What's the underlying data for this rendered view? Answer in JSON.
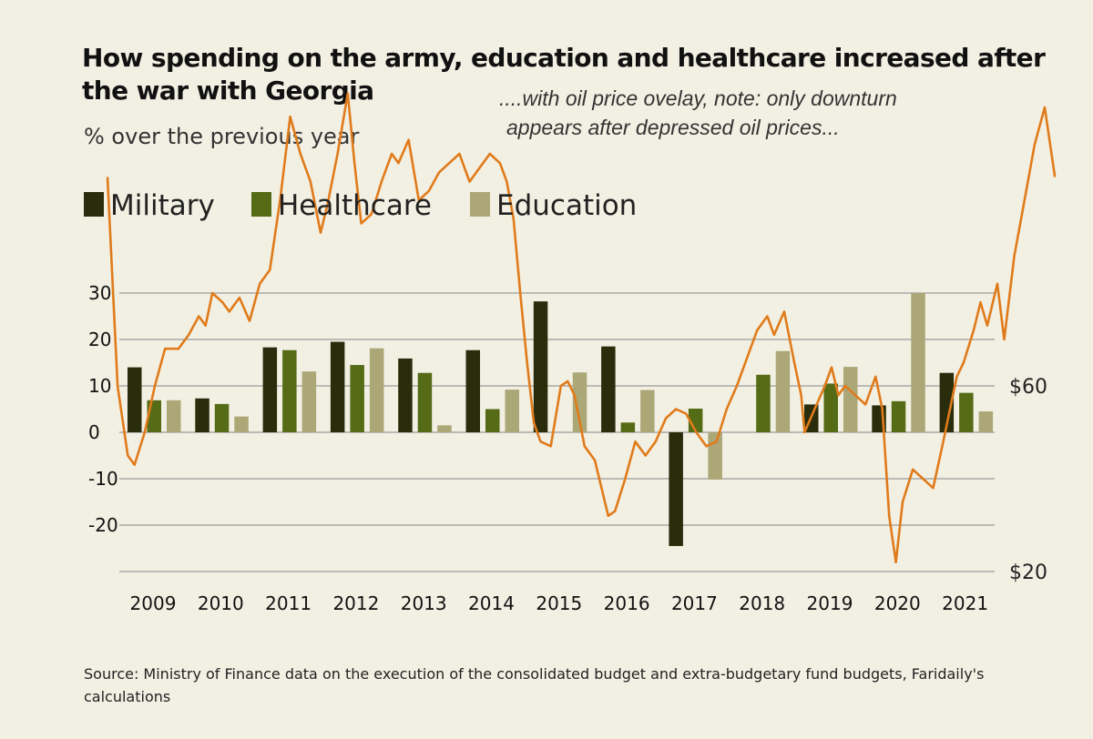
{
  "header": {
    "title": "How spending on the army, education and healthcare increased after the war with Georgia",
    "subtitle": "% over the previous year",
    "annotation_line1": "....with oil price ovelay, note: only downturn",
    "annotation_line2": "appears after depressed oil prices..."
  },
  "footer": {
    "source": "Source: Ministry of Finance data on the execution of the consolidated budget and extra-budgetary fund budgets, Faridaily's calculations"
  },
  "colors": {
    "military": "#2a2d0c",
    "healthcare": "#556b16",
    "education": "#aba777",
    "oil": "#e07b1b",
    "grid": "#9a9a9a",
    "background": "#f2f0e3"
  },
  "chart_data": {
    "type": "bar",
    "title": "How spending on the army, education and healthcare increased after the war with Georgia",
    "ylabel": "% over the previous year",
    "ylim": [
      -30,
      30
    ],
    "yticks": [
      "30",
      "20",
      "10",
      "0",
      "-10",
      "-20"
    ],
    "ytick_values": [
      30,
      20,
      10,
      0,
      -10,
      -20
    ],
    "grid": true,
    "legend_position": "top-left",
    "categories": [
      "2009",
      "2010",
      "2011",
      "2012",
      "2013",
      "2014",
      "2015",
      "2016",
      "2017",
      "2018",
      "2019",
      "2020",
      "2021"
    ],
    "series": [
      {
        "name": "Military",
        "values": [
          14,
          7.3,
          18.3,
          19.5,
          15.9,
          17.7,
          28.2,
          18.5,
          -24.5,
          0,
          6,
          5.8,
          12.8
        ]
      },
      {
        "name": "Healthcare",
        "values": [
          6.9,
          6.1,
          17.7,
          14.5,
          12.8,
          5,
          0,
          2.1,
          5.1,
          12.4,
          10.5,
          6.7,
          8.5
        ]
      },
      {
        "name": "Education",
        "values": [
          6.9,
          3.4,
          13.1,
          18.1,
          1.5,
          9.2,
          12.9,
          9.1,
          -10.2,
          17.5,
          14.1,
          30,
          4.5
        ]
      }
    ],
    "overlay": {
      "name": "Oil price",
      "right_axis_labels": [
        "$60",
        "$20"
      ],
      "right_axis_values": [
        60,
        20
      ],
      "points": [
        [
          2008.65,
          105
        ],
        [
          2008.8,
          60
        ],
        [
          2008.95,
          45
        ],
        [
          2009.05,
          43
        ],
        [
          2009.2,
          50
        ],
        [
          2009.35,
          60
        ],
        [
          2009.5,
          68
        ],
        [
          2009.7,
          68
        ],
        [
          2009.85,
          71
        ],
        [
          2010.0,
          75
        ],
        [
          2010.1,
          73
        ],
        [
          2010.2,
          80
        ],
        [
          2010.35,
          78
        ],
        [
          2010.45,
          76
        ],
        [
          2010.6,
          79
        ],
        [
          2010.75,
          74
        ],
        [
          2010.9,
          82
        ],
        [
          2011.05,
          85
        ],
        [
          2011.2,
          100
        ],
        [
          2011.35,
          118
        ],
        [
          2011.5,
          110
        ],
        [
          2011.65,
          104
        ],
        [
          2011.8,
          93
        ],
        [
          2011.9,
          99
        ],
        [
          2012.05,
          110
        ],
        [
          2012.2,
          123
        ],
        [
          2012.3,
          108
        ],
        [
          2012.4,
          95
        ],
        [
          2012.55,
          97
        ],
        [
          2012.7,
          104
        ],
        [
          2012.85,
          110
        ],
        [
          2012.95,
          108
        ],
        [
          2013.1,
          113
        ],
        [
          2013.25,
          100
        ],
        [
          2013.4,
          102
        ],
        [
          2013.55,
          106
        ],
        [
          2013.7,
          108
        ],
        [
          2013.85,
          110
        ],
        [
          2014.0,
          104
        ],
        [
          2014.15,
          107
        ],
        [
          2014.3,
          110
        ],
        [
          2014.45,
          108
        ],
        [
          2014.55,
          104
        ],
        [
          2014.65,
          96
        ],
        [
          2014.75,
          80
        ],
        [
          2014.85,
          65
        ],
        [
          2014.95,
          52
        ],
        [
          2015.05,
          48
        ],
        [
          2015.2,
          47
        ],
        [
          2015.35,
          60
        ],
        [
          2015.45,
          61
        ],
        [
          2015.55,
          58
        ],
        [
          2015.7,
          47
        ],
        [
          2015.85,
          44
        ],
        [
          2015.95,
          38
        ],
        [
          2016.05,
          32
        ],
        [
          2016.15,
          33
        ],
        [
          2016.3,
          40
        ],
        [
          2016.45,
          48
        ],
        [
          2016.6,
          45
        ],
        [
          2016.75,
          48
        ],
        [
          2016.9,
          53
        ],
        [
          2017.05,
          55
        ],
        [
          2017.2,
          54
        ],
        [
          2017.35,
          50
        ],
        [
          2017.5,
          47
        ],
        [
          2017.65,
          48
        ],
        [
          2017.8,
          55
        ],
        [
          2017.95,
          60
        ],
        [
          2018.1,
          66
        ],
        [
          2018.25,
          72
        ],
        [
          2018.4,
          75
        ],
        [
          2018.5,
          71
        ],
        [
          2018.65,
          76
        ],
        [
          2018.8,
          65
        ],
        [
          2018.9,
          58
        ],
        [
          2018.95,
          50
        ],
        [
          2019.1,
          55
        ],
        [
          2019.25,
          60
        ],
        [
          2019.35,
          64
        ],
        [
          2019.45,
          58
        ],
        [
          2019.55,
          60
        ],
        [
          2019.7,
          58
        ],
        [
          2019.85,
          56
        ],
        [
          2020.0,
          62
        ],
        [
          2020.1,
          55
        ],
        [
          2020.2,
          32
        ],
        [
          2020.3,
          22
        ],
        [
          2020.4,
          35
        ],
        [
          2020.55,
          42
        ],
        [
          2020.7,
          40
        ],
        [
          2020.85,
          38
        ],
        [
          2021.0,
          48
        ],
        [
          2021.1,
          55
        ],
        [
          2021.2,
          62
        ],
        [
          2021.3,
          65
        ],
        [
          2021.45,
          72
        ],
        [
          2021.55,
          78
        ],
        [
          2021.65,
          73
        ],
        [
          2021.8,
          82
        ],
        [
          2021.9,
          70
        ],
        [
          2022.05,
          88
        ],
        [
          2022.2,
          100
        ],
        [
          2022.35,
          112
        ],
        [
          2022.5,
          120
        ],
        [
          2022.65,
          105
        ]
      ]
    }
  }
}
